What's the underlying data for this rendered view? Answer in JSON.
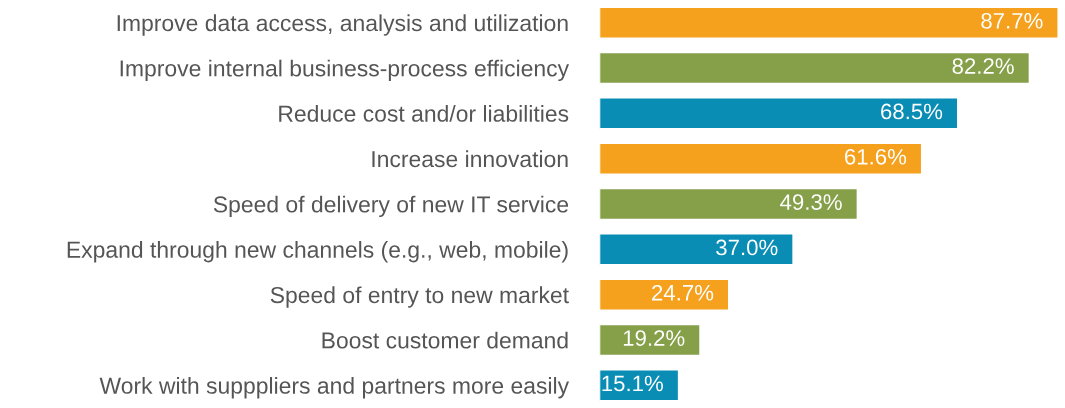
{
  "chart_data": {
    "type": "bar",
    "orientation": "horizontal",
    "data_labels": true,
    "categories": [
      "Improve data access, analysis and utilization",
      "Improve internal business-process efficiency",
      "Reduce cost and/or liabilities",
      "Increase innovation",
      "Speed of delivery of new IT service",
      "Expand through new channels (e.g., web, mobile)",
      "Speed of entry to new market",
      "Boost customer demand",
      "Work with supppliers and partners more easily"
    ],
    "values": [
      87.7,
      82.2,
      68.5,
      61.6,
      49.3,
      37.0,
      24.7,
      19.2,
      15.1
    ],
    "value_labels": [
      "87.7%",
      "82.2%",
      "68.5%",
      "61.6%",
      "49.3%",
      "37.0%",
      "24.7%",
      "19.2%",
      "15.1%"
    ],
    "colors": [
      "#f5a11e",
      "#86a04a",
      "#0a8db5",
      "#f5a11e",
      "#86a04a",
      "#0a8db5",
      "#f5a11e",
      "#86a04a",
      "#0a8db5"
    ],
    "xlim": [
      0,
      88
    ],
    "grid": false,
    "legend": false
  }
}
